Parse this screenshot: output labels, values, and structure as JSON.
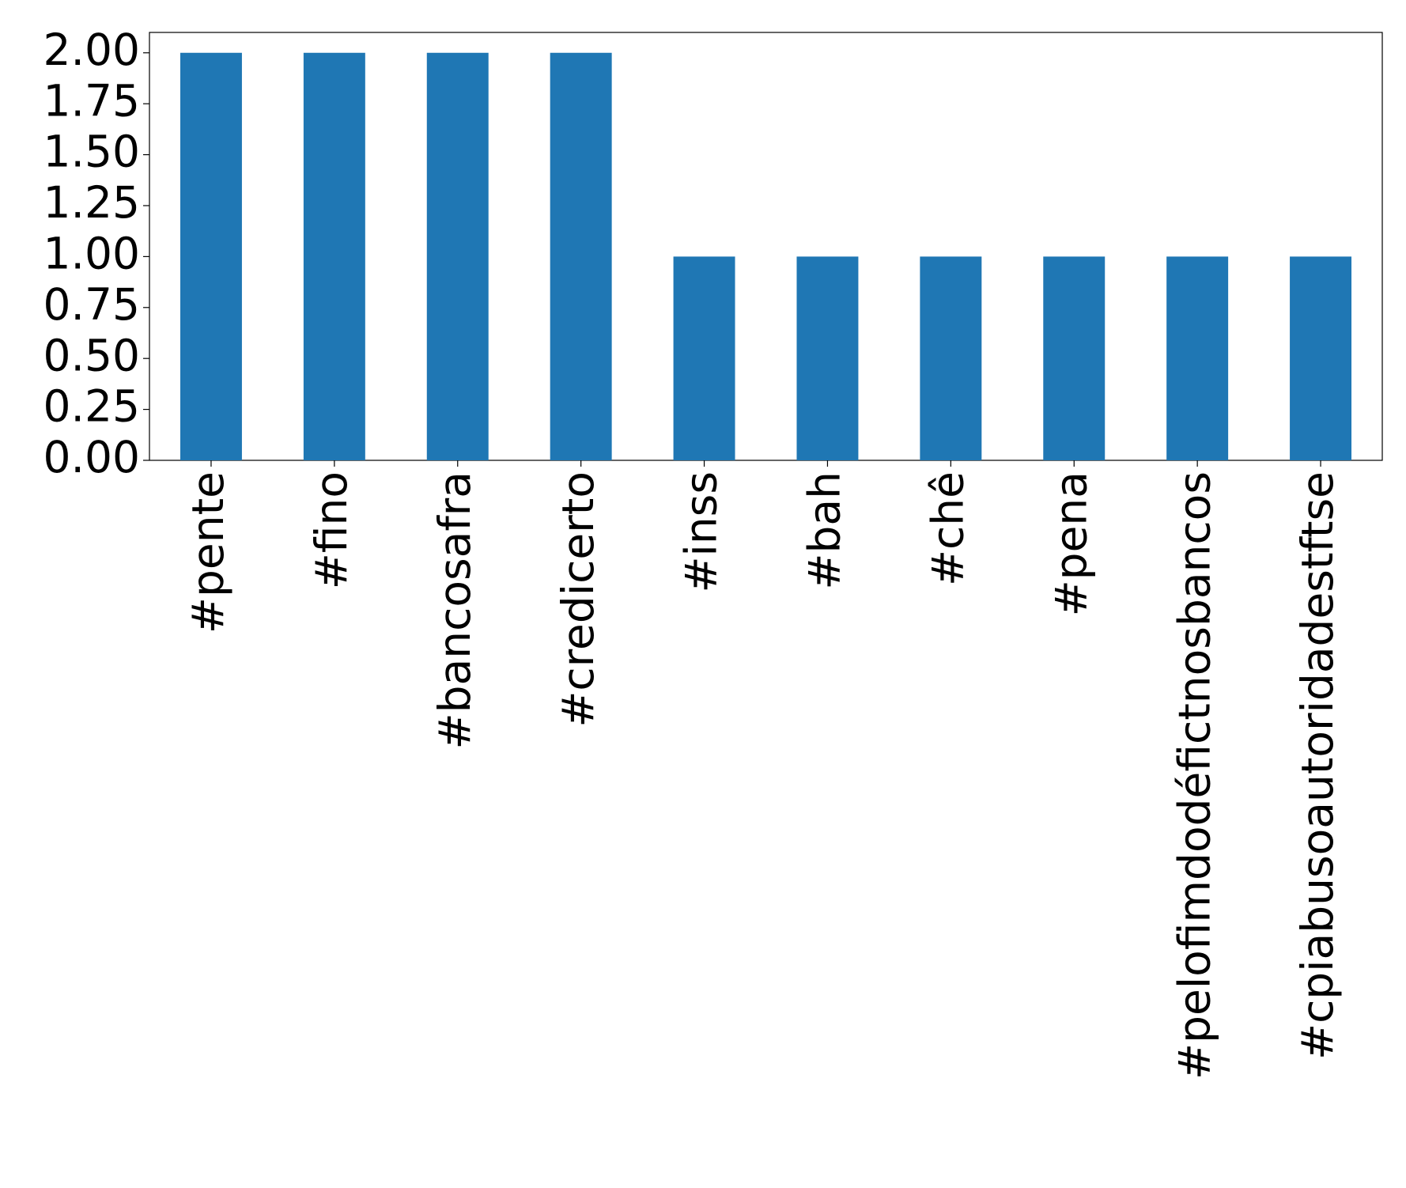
{
  "chart_data": {
    "type": "bar",
    "categories": [
      "#pente",
      "#fino",
      "#bancosafra",
      "#credicerto",
      "#inss",
      "#bah",
      "#chê",
      "#pena",
      "#pelofimdodéfictnosbancos",
      "#cpiabusoautoridadestftse"
    ],
    "values": [
      2,
      2,
      2,
      2,
      1,
      1,
      1,
      1,
      1,
      1
    ],
    "color": "#1f77b4",
    "ylim": [
      0,
      2.1
    ],
    "yticks": [
      {
        "value": 0,
        "label": "0.00"
      },
      {
        "value": 0.25,
        "label": "0.25"
      },
      {
        "value": 0.5,
        "label": "0.50"
      },
      {
        "value": 0.75,
        "label": "0.75"
      },
      {
        "value": 1,
        "label": "1.00"
      },
      {
        "value": 1.25,
        "label": "1.25"
      },
      {
        "value": 1.5,
        "label": "1.50"
      },
      {
        "value": 1.75,
        "label": "1.75"
      },
      {
        "value": 2,
        "label": "2.00"
      }
    ],
    "grid": false
  }
}
